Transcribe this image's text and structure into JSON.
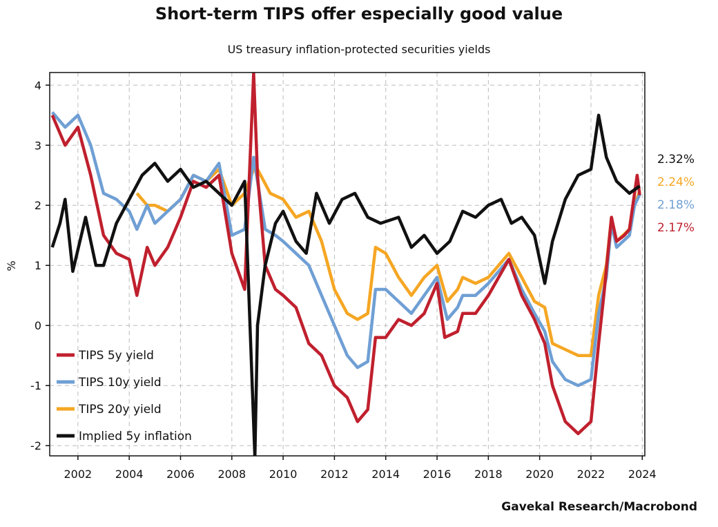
{
  "chart_data": {
    "type": "line",
    "title": "Short-term TIPS offer especially good value",
    "subtitle": "US treasury inflation-protected securities yields",
    "ylabel": "%",
    "xlabel": "",
    "source": "Gavekal Research/Macrobond",
    "xlim": [
      2000.9,
      2024.1
    ],
    "ylim": [
      -2.17,
      4.21
    ],
    "xticks": [
      2002,
      2004,
      2006,
      2008,
      2010,
      2012,
      2014,
      2016,
      2018,
      2020,
      2022,
      2024
    ],
    "yticks": [
      -2,
      -1,
      0,
      1,
      2,
      3,
      4
    ],
    "grid": true,
    "legend_position": "bottom-left",
    "series": [
      {
        "name": "TIPS 5y yield",
        "color": "#c0202e",
        "last_label": "2.17%",
        "x": [
          2001.0,
          2001.5,
          2002.0,
          2002.5,
          2003.0,
          2003.5,
          2004.0,
          2004.3,
          2004.7,
          2005.0,
          2005.5,
          2006.0,
          2006.5,
          2007.0,
          2007.5,
          2008.0,
          2008.5,
          2008.85,
          2009.0,
          2009.3,
          2009.7,
          2010.0,
          2010.5,
          2011.0,
          2011.5,
          2012.0,
          2012.5,
          2012.9,
          2013.3,
          2013.6,
          2014.0,
          2014.5,
          2015.0,
          2015.5,
          2016.0,
          2016.3,
          2016.8,
          2017.0,
          2017.5,
          2018.0,
          2018.8,
          2019.3,
          2019.8,
          2020.2,
          2020.5,
          2021.0,
          2021.5,
          2022.0,
          2022.3,
          2022.5,
          2022.8,
          2023.0,
          2023.3,
          2023.5,
          2023.7,
          2023.8,
          2023.9
        ],
        "values": [
          3.5,
          3.0,
          3.3,
          2.5,
          1.5,
          1.2,
          1.1,
          0.5,
          1.3,
          1.0,
          1.3,
          1.8,
          2.4,
          2.3,
          2.5,
          1.2,
          0.6,
          4.2,
          2.5,
          1.0,
          0.6,
          0.5,
          0.3,
          -0.3,
          -0.5,
          -1.0,
          -1.2,
          -1.6,
          -1.4,
          -0.2,
          -0.2,
          0.1,
          0.0,
          0.2,
          0.7,
          -0.2,
          -0.1,
          0.2,
          0.2,
          0.5,
          1.1,
          0.5,
          0.1,
          -0.3,
          -1.0,
          -1.6,
          -1.8,
          -1.6,
          -0.3,
          0.5,
          1.8,
          1.4,
          1.5,
          1.6,
          2.2,
          2.5,
          2.17
        ]
      },
      {
        "name": "TIPS 10y yield",
        "color": "#6f9fd4",
        "last_label": "2.18%",
        "x": [
          2001.0,
          2001.5,
          2002.0,
          2002.5,
          2003.0,
          2003.5,
          2004.0,
          2004.3,
          2004.7,
          2005.0,
          2005.5,
          2006.0,
          2006.5,
          2007.0,
          2007.5,
          2008.0,
          2008.5,
          2008.85,
          2009.3,
          2009.7,
          2010.0,
          2010.5,
          2011.0,
          2011.5,
          2012.0,
          2012.5,
          2012.9,
          2013.3,
          2013.6,
          2014.0,
          2014.5,
          2015.0,
          2015.5,
          2016.0,
          2016.4,
          2016.8,
          2017.0,
          2017.5,
          2018.0,
          2018.8,
          2019.3,
          2019.8,
          2020.2,
          2020.5,
          2021.0,
          2021.5,
          2022.0,
          2022.3,
          2022.6,
          2022.8,
          2023.0,
          2023.5,
          2023.7,
          2023.9
        ],
        "values": [
          3.55,
          3.3,
          3.5,
          3.0,
          2.2,
          2.1,
          1.9,
          1.6,
          2.0,
          1.7,
          1.9,
          2.1,
          2.5,
          2.4,
          2.7,
          1.5,
          1.6,
          2.8,
          1.6,
          1.5,
          1.4,
          1.2,
          1.0,
          0.5,
          0.0,
          -0.5,
          -0.7,
          -0.6,
          0.6,
          0.6,
          0.4,
          0.2,
          0.5,
          0.8,
          0.1,
          0.3,
          0.5,
          0.5,
          0.7,
          1.1,
          0.6,
          0.2,
          -0.1,
          -0.6,
          -0.9,
          -1.0,
          -0.9,
          0.2,
          0.8,
          1.7,
          1.3,
          1.5,
          2.0,
          2.18
        ]
      },
      {
        "name": "TIPS 20y yield",
        "color": "#f5a623",
        "last_label": "2.24%",
        "x": [
          2004.3,
          2004.7,
          2005.0,
          2005.5,
          2006.0,
          2006.5,
          2007.0,
          2007.5,
          2008.0,
          2008.5,
          2008.85,
          2009.0,
          2009.5,
          2010.0,
          2010.5,
          2011.0,
          2011.5,
          2012.0,
          2012.5,
          2012.9,
          2013.3,
          2013.6,
          2014.0,
          2014.5,
          2015.0,
          2015.5,
          2016.0,
          2016.4,
          2016.8,
          2017.0,
          2017.5,
          2018.0,
          2018.8,
          2019.3,
          2019.8,
          2020.2,
          2020.5,
          2021.0,
          2021.5,
          2022.0,
          2022.3,
          2022.6,
          2022.8,
          2023.0,
          2023.5,
          2023.7,
          2023.9
        ],
        "values": [
          2.2,
          2.0,
          2.0,
          1.9,
          2.1,
          2.5,
          2.4,
          2.6,
          2.0,
          2.2,
          2.6,
          2.6,
          2.2,
          2.1,
          1.8,
          1.9,
          1.4,
          0.6,
          0.2,
          0.1,
          0.2,
          1.3,
          1.2,
          0.8,
          0.5,
          0.8,
          1.0,
          0.4,
          0.6,
          0.8,
          0.7,
          0.8,
          1.2,
          0.8,
          0.4,
          0.3,
          -0.3,
          -0.4,
          -0.5,
          -0.5,
          0.5,
          1.0,
          1.8,
          1.4,
          1.6,
          2.0,
          2.24
        ]
      },
      {
        "name": "Implied 5y inflation",
        "color": "#111111",
        "last_label": "2.32%",
        "x": [
          2001.0,
          2001.3,
          2001.5,
          2001.8,
          2002.3,
          2002.7,
          2003.0,
          2003.5,
          2004.0,
          2004.5,
          2005.0,
          2005.5,
          2006.0,
          2006.5,
          2007.0,
          2007.5,
          2008.0,
          2008.5,
          2008.9,
          2009.0,
          2009.3,
          2009.7,
          2010.0,
          2010.5,
          2010.9,
          2011.3,
          2011.8,
          2012.3,
          2012.8,
          2013.3,
          2013.8,
          2014.5,
          2015.0,
          2015.5,
          2016.0,
          2016.5,
          2017.0,
          2017.5,
          2018.0,
          2018.5,
          2018.9,
          2019.3,
          2019.8,
          2020.2,
          2020.5,
          2021.0,
          2021.5,
          2022.0,
          2022.3,
          2022.6,
          2023.0,
          2023.5,
          2023.9
        ],
        "values": [
          1.3,
          1.7,
          2.1,
          0.9,
          1.8,
          1.0,
          1.0,
          1.7,
          2.1,
          2.5,
          2.7,
          2.4,
          2.6,
          2.3,
          2.4,
          2.2,
          2.0,
          2.4,
          -2.2,
          0.0,
          1.0,
          1.7,
          1.9,
          1.4,
          1.2,
          2.2,
          1.7,
          2.1,
          2.2,
          1.8,
          1.7,
          1.8,
          1.3,
          1.5,
          1.2,
          1.4,
          1.9,
          1.8,
          2.0,
          2.1,
          1.7,
          1.8,
          1.5,
          0.7,
          1.4,
          2.1,
          2.5,
          2.6,
          3.5,
          2.8,
          2.4,
          2.2,
          2.32
        ]
      }
    ]
  }
}
